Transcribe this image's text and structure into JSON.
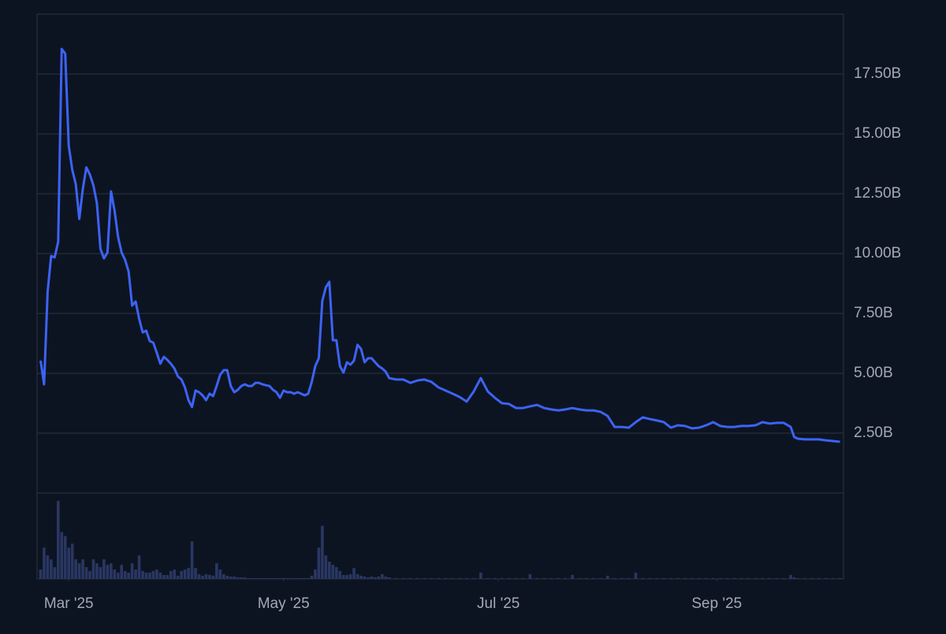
{
  "chart_data": {
    "type": "line",
    "color": "#3d63f5",
    "x": [
      -8,
      -7,
      -6,
      -5,
      -4,
      -3,
      -2,
      -1,
      0,
      1,
      2,
      3,
      4,
      5,
      6,
      7,
      8,
      9,
      10,
      11,
      12,
      13,
      14,
      15,
      16,
      17,
      18,
      19,
      20,
      21,
      22,
      23,
      24,
      25,
      26,
      27,
      28,
      29,
      30,
      31,
      32,
      33,
      34,
      35,
      36,
      37,
      38,
      39,
      40,
      41,
      42,
      43,
      44,
      45,
      46,
      47,
      48,
      49,
      50,
      51,
      52,
      53,
      54,
      55,
      56,
      57,
      58,
      59,
      60,
      61,
      62,
      63,
      64,
      65,
      66,
      67,
      68,
      69,
      70,
      71,
      72,
      73,
      74,
      75,
      76,
      77,
      78,
      79,
      80,
      81,
      82,
      83,
      84,
      85,
      86,
      87,
      88,
      89,
      90,
      91,
      93,
      95,
      97,
      99,
      101,
      103,
      105,
      107,
      109,
      111,
      113,
      115,
      117,
      119,
      121,
      123,
      125,
      127,
      129,
      131,
      133,
      135,
      137,
      139,
      141,
      143,
      145,
      147,
      149,
      151,
      153,
      155,
      157,
      159,
      161,
      163,
      165,
      167,
      169,
      171,
      173,
      175,
      177,
      179,
      181,
      183,
      185,
      187,
      189,
      191,
      193,
      195,
      197,
      199,
      201,
      203,
      205,
      206,
      207,
      209,
      211,
      213,
      215,
      217,
      219
    ],
    "values": [
      5.53,
      4.54,
      8.4,
      9.9,
      9.84,
      10.5,
      18.55,
      18.35,
      14.5,
      13.5,
      12.9,
      11.45,
      12.7,
      13.6,
      13.3,
      12.85,
      12.1,
      10.2,
      9.8,
      10.05,
      12.6,
      11.8,
      10.7,
      10.05,
      9.74,
      9.25,
      7.83,
      8.0,
      7.27,
      6.71,
      6.78,
      6.35,
      6.28,
      5.86,
      5.4,
      5.69,
      5.56,
      5.4,
      5.2,
      4.87,
      4.74,
      4.41,
      3.88,
      3.59,
      4.28,
      4.21,
      4.08,
      3.88,
      4.15,
      4.05,
      4.47,
      4.94,
      5.13,
      5.13,
      4.47,
      4.21,
      4.31,
      4.47,
      4.54,
      4.47,
      4.47,
      4.6,
      4.6,
      4.54,
      4.5,
      4.47,
      4.31,
      4.21,
      3.98,
      4.28,
      4.21,
      4.21,
      4.15,
      4.21,
      4.15,
      4.08,
      4.15,
      4.64,
      5.3,
      5.63,
      8.03,
      8.59,
      8.82,
      6.38,
      6.38,
      5.3,
      5.03,
      5.46,
      5.36,
      5.53,
      6.19,
      6.02,
      5.46,
      5.63,
      5.63,
      5.46,
      5.3,
      5.2,
      5.07,
      4.8,
      4.74,
      4.74,
      4.6,
      4.7,
      4.74,
      4.64,
      4.41,
      4.28,
      4.15,
      4.01,
      3.82,
      4.24,
      4.8,
      4.24,
      3.98,
      3.75,
      3.72,
      3.55,
      3.55,
      3.62,
      3.68,
      3.55,
      3.49,
      3.45,
      3.49,
      3.55,
      3.49,
      3.45,
      3.45,
      3.39,
      3.22,
      2.76,
      2.76,
      2.73,
      2.96,
      3.16,
      3.09,
      3.03,
      2.96,
      2.73,
      2.83,
      2.8,
      2.7,
      2.73,
      2.83,
      2.96,
      2.8,
      2.76,
      2.76,
      2.8,
      2.8,
      2.83,
      2.96,
      2.9,
      2.93,
      2.93,
      2.76,
      2.34,
      2.27,
      2.24,
      2.24,
      2.24,
      2.2,
      2.17,
      2.14
    ],
    "volume": [
      12,
      40,
      30,
      25,
      15,
      100,
      60,
      55,
      40,
      45,
      25,
      20,
      25,
      15,
      10,
      25,
      20,
      15,
      25,
      18,
      20,
      12,
      8,
      18,
      10,
      8,
      20,
      12,
      30,
      10,
      8,
      8,
      10,
      12,
      8,
      5,
      5,
      10,
      12,
      4,
      10,
      12,
      14,
      48,
      14,
      6,
      4,
      6,
      5,
      4,
      20,
      12,
      6,
      4,
      3,
      3,
      2,
      2,
      2,
      1,
      1,
      1,
      1,
      1,
      1,
      1,
      1,
      1,
      1,
      1,
      1,
      1,
      1,
      1,
      1,
      1,
      1,
      4,
      12,
      40,
      68,
      30,
      22,
      18,
      15,
      10,
      5,
      5,
      6,
      14,
      6,
      4,
      3,
      2,
      3,
      2,
      3,
      6,
      3,
      2,
      1,
      1,
      1,
      1,
      1,
      1,
      1,
      1,
      1,
      1,
      1,
      1,
      8,
      1,
      1,
      1,
      1,
      1,
      1,
      6,
      1,
      1,
      1,
      1,
      1,
      5,
      1,
      1,
      1,
      1,
      4,
      1,
      1,
      1,
      8,
      1,
      1,
      1,
      1,
      1,
      1,
      1,
      1,
      1,
      1,
      1,
      1,
      1,
      1,
      1,
      1,
      1,
      1,
      1,
      1,
      1,
      5,
      2,
      1,
      1,
      1,
      1,
      1,
      1,
      1
    ],
    "volume_color": "#2a3763",
    "volume_ylim": [
      0,
      110
    ],
    "xlim": [
      -9,
      220
    ],
    "xticks": [
      {
        "value": 0,
        "label": "Mar '25"
      },
      {
        "value": 61,
        "label": "May '25"
      },
      {
        "value": 122,
        "label": "Jul '25"
      },
      {
        "value": 184,
        "label": "Sep '25"
      }
    ],
    "ylim": [
      0,
      20
    ],
    "yticks": [
      {
        "value": 2.5,
        "label": "2.50B"
      },
      {
        "value": 5,
        "label": "5.00B"
      },
      {
        "value": 7.5,
        "label": "7.50B"
      },
      {
        "value": 10,
        "label": "10.00B"
      },
      {
        "value": 12.5,
        "label": "12.50B"
      },
      {
        "value": 15,
        "label": "15.00B"
      },
      {
        "value": 17.5,
        "label": "17.50B"
      }
    ],
    "grid": true
  }
}
